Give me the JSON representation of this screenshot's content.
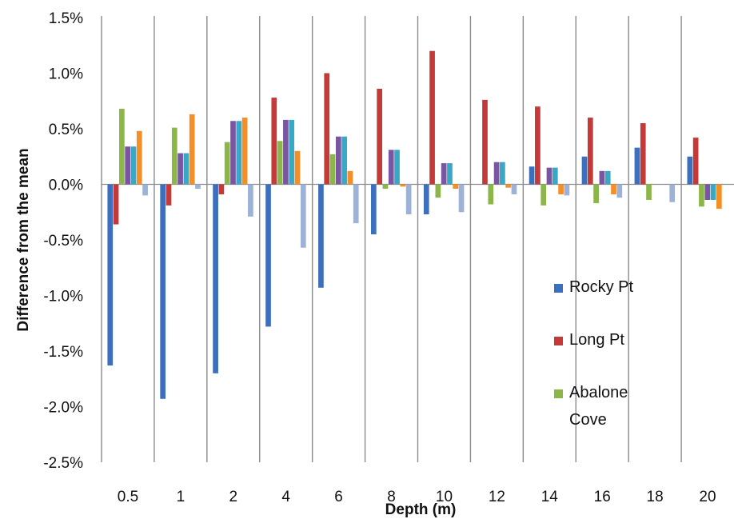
{
  "chart_data": {
    "type": "bar",
    "title": "",
    "xlabel": "Depth (m)",
    "ylabel": "Difference from the mean",
    "ylim": [
      -0.025,
      0.015
    ],
    "y_ticks": [
      0.015,
      0.01,
      0.005,
      0.0,
      -0.005,
      -0.01,
      -0.015,
      -0.02,
      -0.025
    ],
    "y_tick_labels": [
      "1.5%",
      "1.0%",
      "0.5%",
      "0.0%",
      "-0.5%",
      "-1.0%",
      "-1.5%",
      "-2.0%",
      "-2.5%"
    ],
    "categories": [
      "0.5",
      "1",
      "2",
      "4",
      "6",
      "8",
      "10",
      "12",
      "14",
      "16",
      "18",
      "20"
    ],
    "grid": "vertical lines between categories",
    "legend_position": "right",
    "series": [
      {
        "name": "Rocky Pt",
        "color": "#3d6fbf",
        "values": [
          -0.0163,
          -0.0193,
          -0.017,
          -0.0128,
          -0.0093,
          -0.0045,
          -0.0027,
          0.0,
          0.0016,
          0.0025,
          0.0033,
          0.0025
        ]
      },
      {
        "name": "Long Pt",
        "color": "#c33a38",
        "values": [
          -0.0036,
          -0.0019,
          -0.0009,
          0.0078,
          0.01,
          0.0086,
          0.012,
          0.0076,
          0.007,
          0.006,
          0.0055,
          0.0042
        ]
      },
      {
        "name": "Abalone Cove",
        "color": "#8db64a",
        "values": [
          0.0068,
          0.0051,
          0.0038,
          0.0039,
          0.0027,
          -0.0004,
          -0.0012,
          -0.0018,
          -0.0019,
          -0.0017,
          -0.0014,
          -0.002
        ]
      },
      {
        "name": "",
        "color": "#7a56a2",
        "values": [
          0.0034,
          0.0028,
          0.0057,
          0.0058,
          0.0043,
          0.0031,
          0.0019,
          0.002,
          0.0015,
          0.0012,
          0.0,
          -0.0014
        ]
      },
      {
        "name": "",
        "color": "#38a8c4",
        "values": [
          0.0034,
          0.0028,
          0.0057,
          0.0058,
          0.0043,
          0.0031,
          0.0019,
          0.002,
          0.0015,
          0.0012,
          0.0,
          -0.0014
        ]
      },
      {
        "name": "",
        "color": "#f38f26",
        "values": [
          0.0048,
          0.0063,
          0.006,
          0.003,
          0.0012,
          -0.0002,
          -0.0004,
          -0.0003,
          -0.0009,
          -0.0009,
          0.0,
          -0.0022
        ]
      },
      {
        "name": "",
        "color": "#9db2d6",
        "values": [
          -0.001,
          -0.0004,
          -0.0029,
          -0.0057,
          -0.0035,
          -0.0027,
          -0.0025,
          -0.0009,
          -0.001,
          -0.0012,
          -0.0016,
          0.0
        ]
      }
    ]
  }
}
